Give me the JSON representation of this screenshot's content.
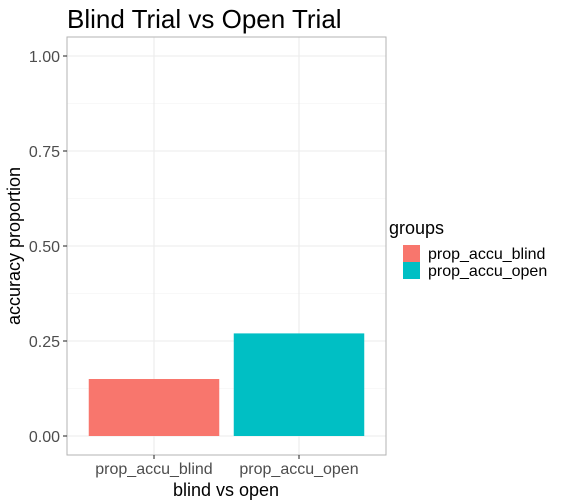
{
  "chart_data": {
    "type": "bar",
    "title": "Blind Trial vs Open Trial",
    "xlabel": "blind vs open",
    "ylabel": "accuracy proportion",
    "categories": [
      "prop_accu_blind",
      "prop_accu_open"
    ],
    "values": [
      0.15,
      0.27
    ],
    "ylim": [
      -0.05,
      1.05
    ],
    "yticks": [
      0.0,
      0.25,
      0.5,
      0.75,
      1.0
    ],
    "ytick_labels": [
      "0.00",
      "0.25",
      "0.50",
      "0.75",
      "1.00"
    ],
    "grid": true,
    "legend": {
      "title": "groups",
      "position": "right",
      "entries": [
        "prop_accu_blind",
        "prop_accu_open"
      ]
    },
    "colors": [
      "#f8766d",
      "#00bfc4"
    ]
  }
}
